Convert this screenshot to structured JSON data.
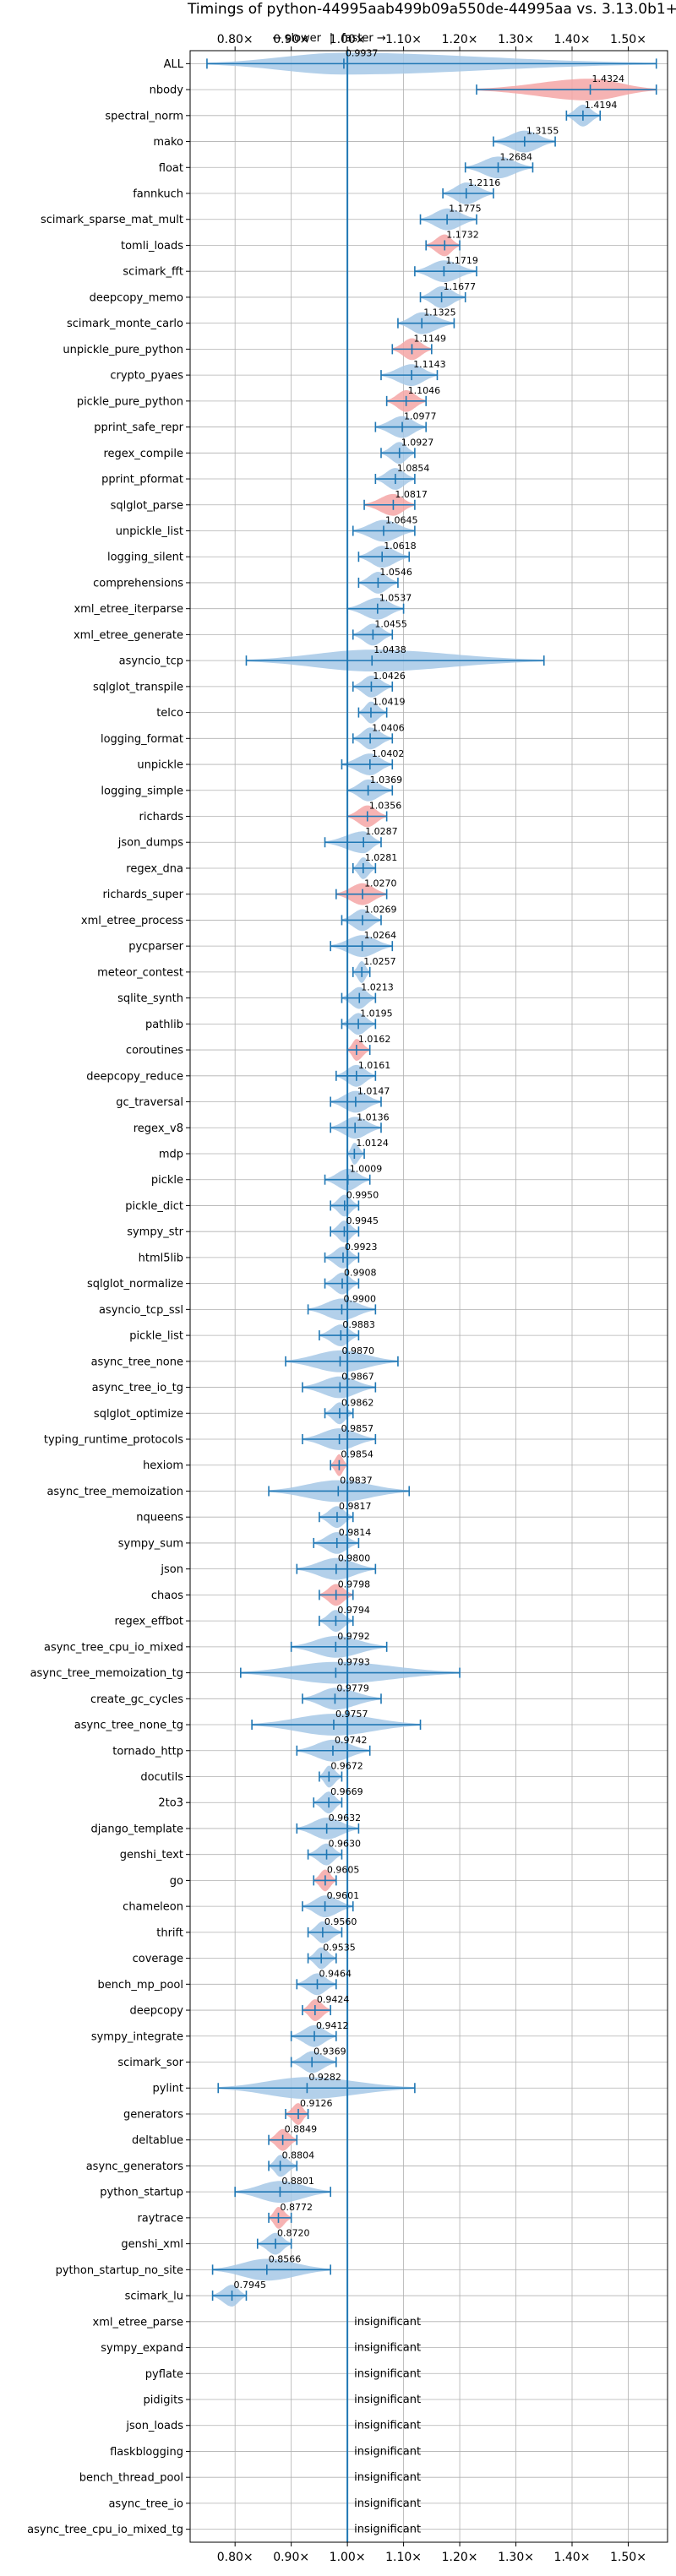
{
  "chart_data": {
    "type": "violin",
    "title": "Timings of python-44995aab499b09a550de-44995aa vs. 3.13.0b1+",
    "direction_slower": "← slower",
    "direction_sep": "|",
    "direction_faster": "faster →",
    "xlim": [
      0.72,
      1.57
    ],
    "ticks": [
      0.8,
      0.9,
      1.0,
      1.1,
      1.2,
      1.3,
      1.4,
      1.5
    ],
    "tick_labels": [
      "0.80×",
      "0.90×",
      "1.00×",
      "1.10×",
      "1.20×",
      "1.30×",
      "1.40×",
      "1.50×"
    ],
    "colors": {
      "normal": "#a6c8e6",
      "significant": "#f4a6a6",
      "line": "#1f77b4",
      "grid": "#b0b0b0"
    },
    "insignificant_text": "insignificant",
    "benchmarks": [
      {
        "name": "ALL",
        "value": 0.9937,
        "label": "0.9937",
        "lo": 0.75,
        "hi": 1.55,
        "sig": false
      },
      {
        "name": "nbody",
        "value": 1.4324,
        "label": "1.4324",
        "lo": 1.23,
        "hi": 1.55,
        "sig": true
      },
      {
        "name": "spectral_norm",
        "value": 1.4194,
        "label": "1.4194",
        "lo": 1.39,
        "hi": 1.45,
        "sig": false
      },
      {
        "name": "mako",
        "value": 1.3155,
        "label": "1.3155",
        "lo": 1.26,
        "hi": 1.37,
        "sig": false
      },
      {
        "name": "float",
        "value": 1.2684,
        "label": "1.2684",
        "lo": 1.21,
        "hi": 1.33,
        "sig": false
      },
      {
        "name": "fannkuch",
        "value": 1.2116,
        "label": "1.2116",
        "lo": 1.17,
        "hi": 1.26,
        "sig": false
      },
      {
        "name": "scimark_sparse_mat_mult",
        "value": 1.1775,
        "label": "1.1775",
        "lo": 1.13,
        "hi": 1.23,
        "sig": false
      },
      {
        "name": "tomli_loads",
        "value": 1.1732,
        "label": "1.1732",
        "lo": 1.14,
        "hi": 1.2,
        "sig": true
      },
      {
        "name": "scimark_fft",
        "value": 1.1719,
        "label": "1.1719",
        "lo": 1.12,
        "hi": 1.23,
        "sig": false
      },
      {
        "name": "deepcopy_memo",
        "value": 1.1677,
        "label": "1.1677",
        "lo": 1.13,
        "hi": 1.21,
        "sig": false
      },
      {
        "name": "scimark_monte_carlo",
        "value": 1.1325,
        "label": "1.1325",
        "lo": 1.09,
        "hi": 1.19,
        "sig": false
      },
      {
        "name": "unpickle_pure_python",
        "value": 1.1149,
        "label": "1.1149",
        "lo": 1.08,
        "hi": 1.15,
        "sig": true
      },
      {
        "name": "crypto_pyaes",
        "value": 1.1143,
        "label": "1.1143",
        "lo": 1.06,
        "hi": 1.16,
        "sig": false
      },
      {
        "name": "pickle_pure_python",
        "value": 1.1046,
        "label": "1.1046",
        "lo": 1.07,
        "hi": 1.14,
        "sig": true
      },
      {
        "name": "pprint_safe_repr",
        "value": 1.0977,
        "label": "1.0977",
        "lo": 1.05,
        "hi": 1.14,
        "sig": false
      },
      {
        "name": "regex_compile",
        "value": 1.0927,
        "label": "1.0927",
        "lo": 1.06,
        "hi": 1.12,
        "sig": false
      },
      {
        "name": "pprint_pformat",
        "value": 1.0854,
        "label": "1.0854",
        "lo": 1.05,
        "hi": 1.12,
        "sig": false
      },
      {
        "name": "sqlglot_parse",
        "value": 1.0817,
        "label": "1.0817",
        "lo": 1.03,
        "hi": 1.12,
        "sig": true
      },
      {
        "name": "unpickle_list",
        "value": 1.0645,
        "label": "1.0645",
        "lo": 1.01,
        "hi": 1.12,
        "sig": false
      },
      {
        "name": "logging_silent",
        "value": 1.0618,
        "label": "1.0618",
        "lo": 1.02,
        "hi": 1.11,
        "sig": false
      },
      {
        "name": "comprehensions",
        "value": 1.0546,
        "label": "1.0546",
        "lo": 1.02,
        "hi": 1.09,
        "sig": false
      },
      {
        "name": "xml_etree_iterparse",
        "value": 1.0537,
        "label": "1.0537",
        "lo": 1.0,
        "hi": 1.1,
        "sig": false
      },
      {
        "name": "xml_etree_generate",
        "value": 1.0455,
        "label": "1.0455",
        "lo": 1.01,
        "hi": 1.08,
        "sig": false
      },
      {
        "name": "asyncio_tcp",
        "value": 1.0438,
        "label": "1.0438",
        "lo": 0.82,
        "hi": 1.35,
        "sig": false
      },
      {
        "name": "sqlglot_transpile",
        "value": 1.0426,
        "label": "1.0426",
        "lo": 1.01,
        "hi": 1.08,
        "sig": false
      },
      {
        "name": "telco",
        "value": 1.0419,
        "label": "1.0419",
        "lo": 1.02,
        "hi": 1.07,
        "sig": false
      },
      {
        "name": "logging_format",
        "value": 1.0406,
        "label": "1.0406",
        "lo": 1.01,
        "hi": 1.08,
        "sig": false
      },
      {
        "name": "unpickle",
        "value": 1.0402,
        "label": "1.0402",
        "lo": 0.99,
        "hi": 1.08,
        "sig": false
      },
      {
        "name": "logging_simple",
        "value": 1.0369,
        "label": "1.0369",
        "lo": 1.0,
        "hi": 1.08,
        "sig": false
      },
      {
        "name": "richards",
        "value": 1.0356,
        "label": "1.0356",
        "lo": 1.0,
        "hi": 1.07,
        "sig": true
      },
      {
        "name": "json_dumps",
        "value": 1.0287,
        "label": "1.0287",
        "lo": 0.96,
        "hi": 1.06,
        "sig": false
      },
      {
        "name": "regex_dna",
        "value": 1.0281,
        "label": "1.0281",
        "lo": 1.01,
        "hi": 1.05,
        "sig": false
      },
      {
        "name": "richards_super",
        "value": 1.027,
        "label": "1.0270",
        "lo": 0.98,
        "hi": 1.07,
        "sig": true
      },
      {
        "name": "xml_etree_process",
        "value": 1.0269,
        "label": "1.0269",
        "lo": 0.99,
        "hi": 1.06,
        "sig": false
      },
      {
        "name": "pycparser",
        "value": 1.0264,
        "label": "1.0264",
        "lo": 0.97,
        "hi": 1.08,
        "sig": false
      },
      {
        "name": "meteor_contest",
        "value": 1.0257,
        "label": "1.0257",
        "lo": 1.01,
        "hi": 1.04,
        "sig": false
      },
      {
        "name": "sqlite_synth",
        "value": 1.0213,
        "label": "1.0213",
        "lo": 0.99,
        "hi": 1.05,
        "sig": false
      },
      {
        "name": "pathlib",
        "value": 1.0195,
        "label": "1.0195",
        "lo": 0.99,
        "hi": 1.05,
        "sig": false
      },
      {
        "name": "coroutines",
        "value": 1.0162,
        "label": "1.0162",
        "lo": 1.0,
        "hi": 1.04,
        "sig": true
      },
      {
        "name": "deepcopy_reduce",
        "value": 1.0161,
        "label": "1.0161",
        "lo": 0.98,
        "hi": 1.05,
        "sig": false
      },
      {
        "name": "gc_traversal",
        "value": 1.0147,
        "label": "1.0147",
        "lo": 0.97,
        "hi": 1.06,
        "sig": false
      },
      {
        "name": "regex_v8",
        "value": 1.0136,
        "label": "1.0136",
        "lo": 0.97,
        "hi": 1.06,
        "sig": false
      },
      {
        "name": "mdp",
        "value": 1.0124,
        "label": "1.0124",
        "lo": 1.0,
        "hi": 1.03,
        "sig": false
      },
      {
        "name": "pickle",
        "value": 1.0009,
        "label": "1.0009",
        "lo": 0.96,
        "hi": 1.04,
        "sig": false
      },
      {
        "name": "pickle_dict",
        "value": 0.995,
        "label": "0.9950",
        "lo": 0.97,
        "hi": 1.02,
        "sig": false
      },
      {
        "name": "sympy_str",
        "value": 0.9945,
        "label": "0.9945",
        "lo": 0.97,
        "hi": 1.02,
        "sig": false
      },
      {
        "name": "html5lib",
        "value": 0.9923,
        "label": "0.9923",
        "lo": 0.96,
        "hi": 1.02,
        "sig": false
      },
      {
        "name": "sqlglot_normalize",
        "value": 0.9908,
        "label": "0.9908",
        "lo": 0.96,
        "hi": 1.02,
        "sig": false
      },
      {
        "name": "asyncio_tcp_ssl",
        "value": 0.99,
        "label": "0.9900",
        "lo": 0.93,
        "hi": 1.05,
        "sig": false
      },
      {
        "name": "pickle_list",
        "value": 0.9883,
        "label": "0.9883",
        "lo": 0.95,
        "hi": 1.02,
        "sig": false
      },
      {
        "name": "async_tree_none",
        "value": 0.987,
        "label": "0.9870",
        "lo": 0.89,
        "hi": 1.09,
        "sig": false
      },
      {
        "name": "async_tree_io_tg",
        "value": 0.9867,
        "label": "0.9867",
        "lo": 0.92,
        "hi": 1.05,
        "sig": false
      },
      {
        "name": "sqlglot_optimize",
        "value": 0.9862,
        "label": "0.9862",
        "lo": 0.96,
        "hi": 1.01,
        "sig": false
      },
      {
        "name": "typing_runtime_protocols",
        "value": 0.9857,
        "label": "0.9857",
        "lo": 0.92,
        "hi": 1.05,
        "sig": false
      },
      {
        "name": "hexiom",
        "value": 0.9854,
        "label": "0.9854",
        "lo": 0.97,
        "hi": 1.0,
        "sig": true
      },
      {
        "name": "async_tree_memoization",
        "value": 0.9837,
        "label": "0.9837",
        "lo": 0.86,
        "hi": 1.11,
        "sig": false
      },
      {
        "name": "nqueens",
        "value": 0.9817,
        "label": "0.9817",
        "lo": 0.95,
        "hi": 1.01,
        "sig": false
      },
      {
        "name": "sympy_sum",
        "value": 0.9814,
        "label": "0.9814",
        "lo": 0.94,
        "hi": 1.02,
        "sig": false
      },
      {
        "name": "json",
        "value": 0.98,
        "label": "0.9800",
        "lo": 0.91,
        "hi": 1.05,
        "sig": false
      },
      {
        "name": "chaos",
        "value": 0.9798,
        "label": "0.9798",
        "lo": 0.95,
        "hi": 1.01,
        "sig": true
      },
      {
        "name": "regex_effbot",
        "value": 0.9794,
        "label": "0.9794",
        "lo": 0.95,
        "hi": 1.01,
        "sig": false
      },
      {
        "name": "async_tree_cpu_io_mixed",
        "value": 0.9792,
        "label": "0.9792",
        "lo": 0.9,
        "hi": 1.07,
        "sig": false
      },
      {
        "name": "async_tree_memoization_tg",
        "value": 0.9793,
        "label": "0.9793",
        "lo": 0.81,
        "hi": 1.2,
        "sig": false
      },
      {
        "name": "create_gc_cycles",
        "value": 0.9779,
        "label": "0.9779",
        "lo": 0.92,
        "hi": 1.06,
        "sig": false
      },
      {
        "name": "async_tree_none_tg",
        "value": 0.9757,
        "label": "0.9757",
        "lo": 0.83,
        "hi": 1.13,
        "sig": false
      },
      {
        "name": "tornado_http",
        "value": 0.9742,
        "label": "0.9742",
        "lo": 0.91,
        "hi": 1.04,
        "sig": false
      },
      {
        "name": "docutils",
        "value": 0.9672,
        "label": "0.9672",
        "lo": 0.95,
        "hi": 0.99,
        "sig": false
      },
      {
        "name": "2to3",
        "value": 0.9669,
        "label": "0.9669",
        "lo": 0.94,
        "hi": 0.99,
        "sig": false
      },
      {
        "name": "django_template",
        "value": 0.9632,
        "label": "0.9632",
        "lo": 0.91,
        "hi": 1.02,
        "sig": false
      },
      {
        "name": "genshi_text",
        "value": 0.963,
        "label": "0.9630",
        "lo": 0.93,
        "hi": 0.99,
        "sig": false
      },
      {
        "name": "go",
        "value": 0.9605,
        "label": "0.9605",
        "lo": 0.94,
        "hi": 0.98,
        "sig": true
      },
      {
        "name": "chameleon",
        "value": 0.9601,
        "label": "0.9601",
        "lo": 0.92,
        "hi": 1.01,
        "sig": false
      },
      {
        "name": "thrift",
        "value": 0.956,
        "label": "0.9560",
        "lo": 0.93,
        "hi": 0.99,
        "sig": false
      },
      {
        "name": "coverage",
        "value": 0.9535,
        "label": "0.9535",
        "lo": 0.93,
        "hi": 0.98,
        "sig": false
      },
      {
        "name": "bench_mp_pool",
        "value": 0.9464,
        "label": "0.9464",
        "lo": 0.91,
        "hi": 0.98,
        "sig": false
      },
      {
        "name": "deepcopy",
        "value": 0.9424,
        "label": "0.9424",
        "lo": 0.92,
        "hi": 0.97,
        "sig": true
      },
      {
        "name": "sympy_integrate",
        "value": 0.9412,
        "label": "0.9412",
        "lo": 0.9,
        "hi": 0.98,
        "sig": false
      },
      {
        "name": "scimark_sor",
        "value": 0.9369,
        "label": "0.9369",
        "lo": 0.9,
        "hi": 0.98,
        "sig": false
      },
      {
        "name": "pylint",
        "value": 0.9282,
        "label": "0.9282",
        "lo": 0.77,
        "hi": 1.12,
        "sig": false
      },
      {
        "name": "generators",
        "value": 0.9126,
        "label": "0.9126",
        "lo": 0.89,
        "hi": 0.93,
        "sig": true
      },
      {
        "name": "deltablue",
        "value": 0.8849,
        "label": "0.8849",
        "lo": 0.86,
        "hi": 0.91,
        "sig": true
      },
      {
        "name": "async_generators",
        "value": 0.8804,
        "label": "0.8804",
        "lo": 0.86,
        "hi": 0.91,
        "sig": false
      },
      {
        "name": "python_startup",
        "value": 0.8801,
        "label": "0.8801",
        "lo": 0.8,
        "hi": 0.97,
        "sig": false
      },
      {
        "name": "raytrace",
        "value": 0.8772,
        "label": "0.8772",
        "lo": 0.86,
        "hi": 0.9,
        "sig": true
      },
      {
        "name": "genshi_xml",
        "value": 0.872,
        "label": "0.8720",
        "lo": 0.84,
        "hi": 0.9,
        "sig": false
      },
      {
        "name": "python_startup_no_site",
        "value": 0.8566,
        "label": "0.8566",
        "lo": 0.76,
        "hi": 0.97,
        "sig": false
      },
      {
        "name": "scimark_lu",
        "value": 0.7945,
        "label": "0.7945",
        "lo": 0.76,
        "hi": 0.82,
        "sig": false
      },
      {
        "name": "xml_etree_parse",
        "value": null,
        "label": "",
        "sig": false
      },
      {
        "name": "sympy_expand",
        "value": null,
        "label": "",
        "sig": false
      },
      {
        "name": "pyflate",
        "value": null,
        "label": "",
        "sig": false
      },
      {
        "name": "pidigits",
        "value": null,
        "label": "",
        "sig": false
      },
      {
        "name": "json_loads",
        "value": null,
        "label": "",
        "sig": false
      },
      {
        "name": "flaskblogging",
        "value": null,
        "label": "",
        "sig": false
      },
      {
        "name": "bench_thread_pool",
        "value": null,
        "label": "",
        "sig": false
      },
      {
        "name": "async_tree_io",
        "value": null,
        "label": "",
        "sig": false
      },
      {
        "name": "async_tree_cpu_io_mixed_tg",
        "value": null,
        "label": "",
        "sig": false
      }
    ]
  }
}
